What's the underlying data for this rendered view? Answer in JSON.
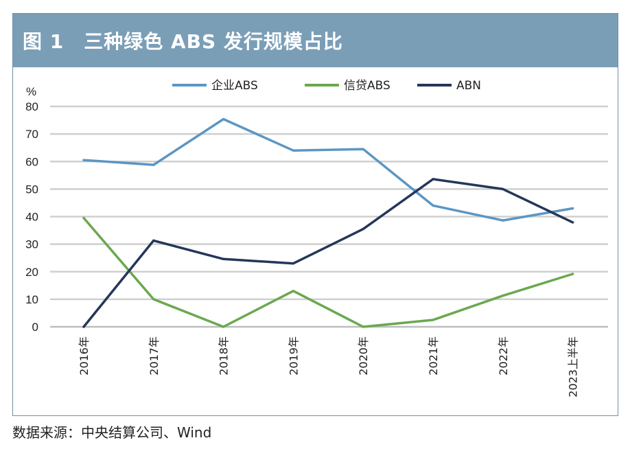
{
  "header": {
    "title": "图 1　三种绿色 ABS 发行规模占比"
  },
  "footer": {
    "source": "数据来源：中央结算公司、Wind"
  },
  "chart_data": {
    "type": "line",
    "title": "图 1　三种绿色 ABS 发行规模占比",
    "ylabel": "%",
    "xlabel": "",
    "ylim": [
      0,
      80
    ],
    "yticks": [
      0,
      10,
      20,
      30,
      40,
      50,
      60,
      70,
      80
    ],
    "grid": true,
    "legend_position": "top-center",
    "categories": [
      "2016年",
      "2017年",
      "2018年",
      "2019年",
      "2020年",
      "2021年",
      "2022年",
      "2023上半年"
    ],
    "series": [
      {
        "name": "企业ABS",
        "color": "#5b96c3",
        "values": [
          60.5,
          58.8,
          75.4,
          64.0,
          64.5,
          44.0,
          38.6,
          43.0
        ]
      },
      {
        "name": "信贷ABS",
        "color": "#6aa84f",
        "values": [
          39.5,
          10.0,
          0.0,
          13.0,
          0.0,
          2.5,
          11.3,
          19.2
        ]
      },
      {
        "name": "ABN",
        "color": "#24375a",
        "values": [
          0.0,
          31.3,
          24.6,
          23.0,
          35.5,
          53.6,
          50.0,
          37.9
        ]
      }
    ]
  }
}
